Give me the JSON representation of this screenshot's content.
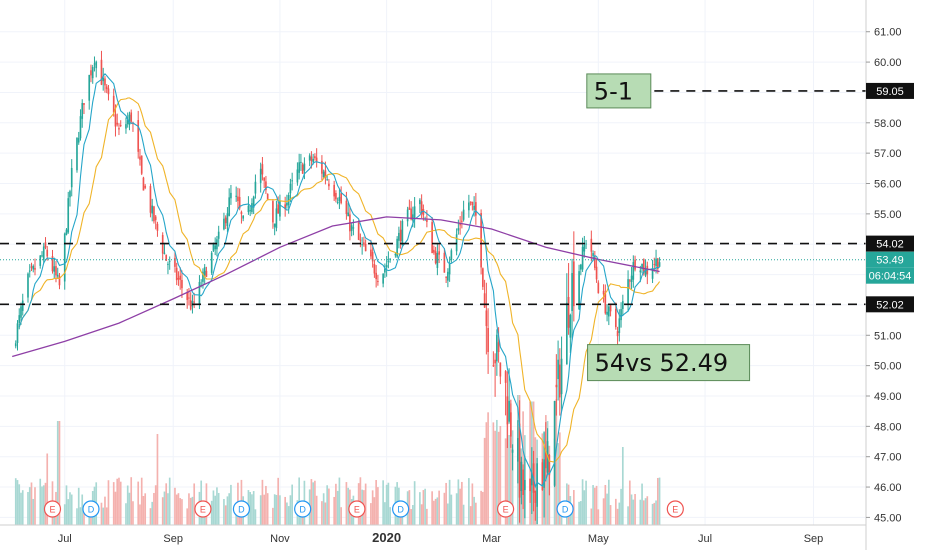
{
  "chart_data": {
    "type": "candlestick",
    "yaxis": {
      "ticks": [
        "45.00",
        "46.00",
        "47.00",
        "48.00",
        "49.00",
        "50.00",
        "51.00",
        "52.00",
        "53.00",
        "54.00",
        "55.00",
        "56.00",
        "57.00",
        "58.00",
        "59.00",
        "60.00",
        "61.00"
      ],
      "range": [
        44.75,
        61.65
      ]
    },
    "xaxis": {
      "ticks": [
        {
          "label": "Jul",
          "date": "2019-07-01",
          "bold": false
        },
        {
          "label": "Sep",
          "date": "2019-09-01",
          "bold": false
        },
        {
          "label": "Nov",
          "date": "2019-11-01",
          "bold": false
        },
        {
          "label": "2020",
          "date": "2020-01-01",
          "bold": true
        },
        {
          "label": "Mar",
          "date": "2020-03-01",
          "bold": false
        },
        {
          "label": "May",
          "date": "2020-05-01",
          "bold": false
        },
        {
          "label": "Jul",
          "date": "2020-07-01",
          "bold": false
        },
        {
          "label": "Sep",
          "date": "2020-09-01",
          "bold": false
        }
      ],
      "start": "2019-05-25",
      "end": "2020-10-01"
    },
    "close_path": [
      [
        "2019-06-01",
        50.5
      ],
      [
        "2019-06-10",
        52.8
      ],
      [
        "2019-06-20",
        53.8
      ],
      [
        "2019-06-28",
        52.6
      ],
      [
        "2019-07-05",
        56.3
      ],
      [
        "2019-07-12",
        58.8
      ],
      [
        "2019-07-18",
        60.2
      ],
      [
        "2019-07-25",
        58.9
      ],
      [
        "2019-08-01",
        57.7
      ],
      [
        "2019-08-08",
        58.2
      ],
      [
        "2019-08-14",
        56.2
      ],
      [
        "2019-08-20",
        55.0
      ],
      [
        "2019-08-28",
        53.5
      ],
      [
        "2019-09-05",
        52.7
      ],
      [
        "2019-09-12",
        51.9
      ],
      [
        "2019-09-20",
        53.2
      ],
      [
        "2019-09-28",
        54.3
      ],
      [
        "2019-10-05",
        55.8
      ],
      [
        "2019-10-12",
        54.5
      ],
      [
        "2019-10-20",
        56.6
      ],
      [
        "2019-10-28",
        54.8
      ],
      [
        "2019-11-05",
        55.5
      ],
      [
        "2019-11-12",
        56.5
      ],
      [
        "2019-11-20",
        56.8
      ],
      [
        "2019-11-28",
        56.2
      ],
      [
        "2019-12-05",
        55.5
      ],
      [
        "2019-12-12",
        54.5
      ],
      [
        "2019-12-20",
        53.7
      ],
      [
        "2019-12-28",
        52.9
      ],
      [
        "2020-01-05",
        53.8
      ],
      [
        "2020-01-12",
        54.8
      ],
      [
        "2020-01-20",
        55.4
      ],
      [
        "2020-01-28",
        53.7
      ],
      [
        "2020-02-04",
        53.1
      ],
      [
        "2020-02-10",
        54.3
      ],
      [
        "2020-02-16",
        55.5
      ],
      [
        "2020-02-22",
        54.8
      ],
      [
        "2020-02-27",
        51.5
      ],
      [
        "2020-03-03",
        50.5
      ],
      [
        "2020-03-09",
        49.2
      ],
      [
        "2020-03-13",
        47.8
      ],
      [
        "2020-03-18",
        46.0
      ],
      [
        "2020-03-23",
        45.2
      ],
      [
        "2020-03-27",
        46.8
      ],
      [
        "2020-04-01",
        46.3
      ],
      [
        "2020-04-06",
        48.5
      ],
      [
        "2020-04-10",
        50.2
      ],
      [
        "2020-04-15",
        52.6
      ],
      [
        "2020-04-20",
        53.2
      ],
      [
        "2020-04-25",
        54.4
      ],
      [
        "2020-05-01",
        52.6
      ],
      [
        "2020-05-06",
        51.8
      ],
      [
        "2020-05-12",
        51.2
      ],
      [
        "2020-05-18",
        52.8
      ],
      [
        "2020-05-23",
        53.6
      ],
      [
        "2020-05-28",
        53.1
      ],
      [
        "2020-06-02",
        53.4
      ],
      [
        "2020-06-05",
        53.49
      ]
    ],
    "ma200_path": [
      [
        "2019-06-01",
        50.3
      ],
      [
        "2019-07-01",
        50.8
      ],
      [
        "2019-08-01",
        51.4
      ],
      [
        "2019-09-01",
        52.2
      ],
      [
        "2019-10-01",
        53.0
      ],
      [
        "2019-11-01",
        53.9
      ],
      [
        "2019-12-01",
        54.6
      ],
      [
        "2020-01-01",
        54.9
      ],
      [
        "2020-02-01",
        54.8
      ],
      [
        "2020-03-01",
        54.5
      ],
      [
        "2020-04-01",
        53.9
      ],
      [
        "2020-05-01",
        53.5
      ],
      [
        "2020-06-05",
        53.1
      ]
    ],
    "volume_spikes": [
      [
        "2019-06-22",
        0.55
      ],
      [
        "2019-06-28",
        0.8
      ],
      [
        "2019-08-24",
        0.7
      ],
      [
        "2020-03-16",
        1.0
      ],
      [
        "2020-03-24",
        0.95
      ],
      [
        "2020-05-16",
        0.6
      ]
    ],
    "events": [
      {
        "label": "E",
        "date": "2019-06-24"
      },
      {
        "label": "D",
        "date": "2019-07-16"
      },
      {
        "label": "E",
        "date": "2019-09-18"
      },
      {
        "label": "D",
        "date": "2019-10-10"
      },
      {
        "label": "D",
        "date": "2019-11-14"
      },
      {
        "label": "E",
        "date": "2019-12-15"
      },
      {
        "label": "D",
        "date": "2020-01-09"
      },
      {
        "label": "E",
        "date": "2020-03-09"
      },
      {
        "label": "D",
        "date": "2020-04-12"
      },
      {
        "label": "E",
        "date": "2020-06-14"
      }
    ],
    "levels": [
      {
        "value": 59.05,
        "label": "59.05",
        "color": "#111111",
        "x_start": "2020-06-02"
      },
      {
        "value": 54.02,
        "label": "54.02",
        "color": "#111111",
        "x_start": "2019-05-25"
      },
      {
        "value": 52.02,
        "label": "52.02",
        "color": "#111111",
        "x_start": "2019-05-25"
      }
    ],
    "last_price": {
      "value": 53.49,
      "label": "53.49",
      "countdown": "06:04:54",
      "color": "#26a69a"
    },
    "annotations": [
      {
        "text": "5-1",
        "anchor_date": "2020-05-31",
        "anchor_price": 59.05
      },
      {
        "text": "54vs 52.49",
        "anchor_date": "2020-04-26",
        "anchor_price": 50.1
      }
    ],
    "colors": {
      "up": "#26a69a",
      "down": "#ef5350",
      "ma_fast": "#26a6c9",
      "ma_mid": "#f0b429",
      "ma_long": "#8e3fa6",
      "up_volume": "#a8d8d3",
      "down_volume": "#f4b1ae",
      "annotation_fill": "#b7dcb4",
      "annotation_border": "#5a8a58"
    }
  }
}
